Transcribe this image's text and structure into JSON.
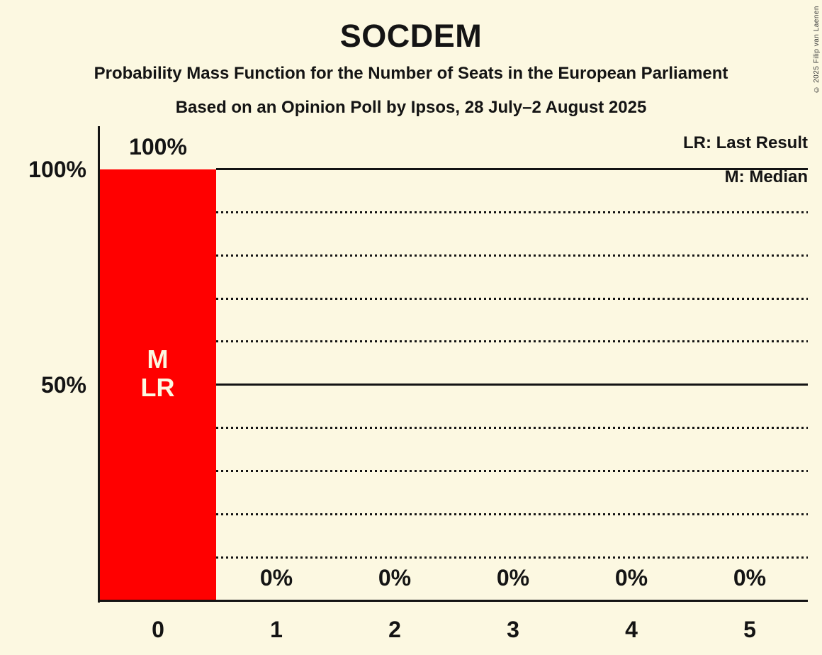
{
  "title": "SOCDEM",
  "subtitle": "Probability Mass Function for the Number of Seats in the European Parliament",
  "poll_line": "Based on an Opinion Poll by Ipsos, 28 July–2 August 2025",
  "copyright": "© 2025 Filip van Laenen",
  "legend": {
    "last_result": "LR: Last Result",
    "median": "M: Median"
  },
  "colors": {
    "background": "#fcf8e1",
    "text": "#141414",
    "bar": "#ff0000",
    "bar_label": "#fcf8e1"
  },
  "y_axis": {
    "labels": [
      {
        "value": 100,
        "text": "100%"
      },
      {
        "value": 50,
        "text": "50%"
      }
    ]
  },
  "chart_data": {
    "type": "bar",
    "categories": [
      "0",
      "1",
      "2",
      "3",
      "4",
      "5"
    ],
    "values": [
      100,
      0,
      0,
      0,
      0,
      0
    ],
    "bar_value_labels": [
      "100%",
      "0%",
      "0%",
      "0%",
      "0%",
      "0%"
    ],
    "bar_annotations": [
      {
        "category": "0",
        "lines": [
          "M",
          "LR"
        ]
      }
    ],
    "title": "SOCDEM",
    "xlabel": "",
    "ylabel": "",
    "ylim": [
      0,
      100
    ],
    "solid_gridlines": [
      100,
      50
    ],
    "dotted_gridlines": [
      90,
      80,
      70,
      60,
      40,
      30,
      20,
      10
    ],
    "legend_position": "top-right",
    "median_category": "0",
    "last_result_category": "0"
  }
}
